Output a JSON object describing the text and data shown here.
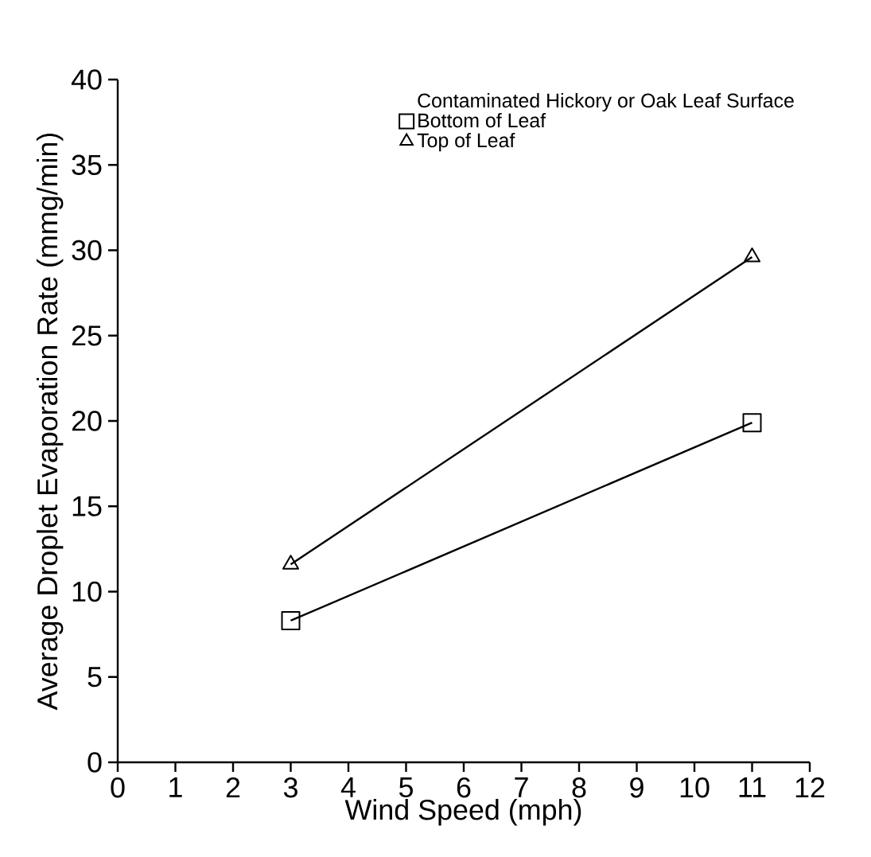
{
  "chart_data": {
    "type": "line",
    "xlabel": "Wind Speed (mph)",
    "ylabel": "Average Droplet Evaporation Rate (mmg/min)",
    "legend_title": "Contaminated Hickory or Oak Leaf Surface",
    "x": [
      3,
      11
    ],
    "series": [
      {
        "name": "Bottom of Leaf",
        "color": "#000000",
        "marker": "square",
        "values": [
          8.3,
          19.9
        ]
      },
      {
        "name": "Top of Leaf",
        "color": "#000000",
        "marker": "triangle",
        "values": [
          11.6,
          29.6
        ]
      }
    ],
    "xlim": [
      0,
      12
    ],
    "ylim": [
      0,
      40
    ],
    "xticks": [
      0,
      1,
      2,
      3,
      4,
      5,
      6,
      7,
      8,
      9,
      10,
      11,
      12
    ],
    "yticks": [
      0,
      5,
      10,
      15,
      20,
      25,
      30,
      35,
      40
    ],
    "legend": "top right",
    "line_style": "solid",
    "grid": false
  }
}
